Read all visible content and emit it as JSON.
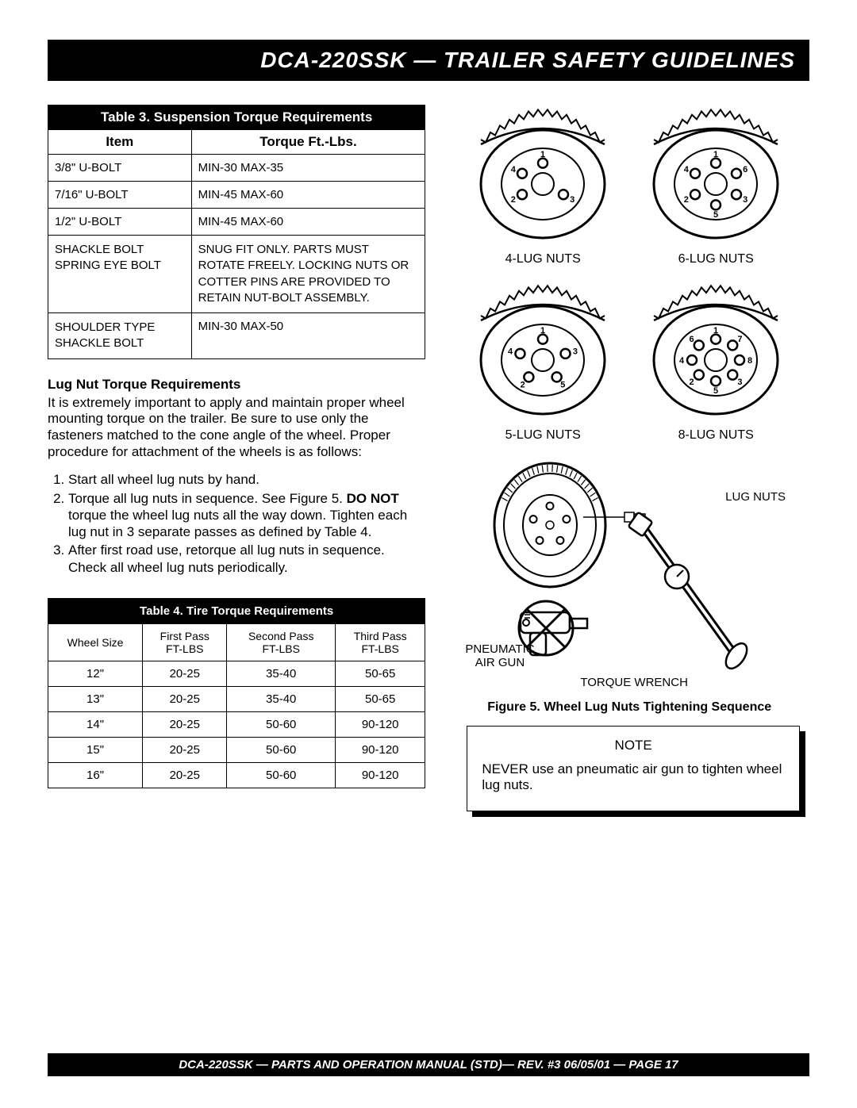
{
  "header": "DCA-220SSK — TRAILER SAFETY GUIDELINES",
  "footer": "DCA-220SSK — PARTS AND OPERATION  MANUAL (STD)— REV. #3  06/05/01 — PAGE 17",
  "table3": {
    "title": "Table 3.  Suspension Torque Requirements",
    "headers": [
      "Item",
      "Torque Ft.-Lbs."
    ],
    "rows": [
      {
        "item": "3/8\" U-BOLT",
        "val": "MIN-30 MAX-35",
        "small": false
      },
      {
        "item": "7/16\" U-BOLT",
        "val": "MIN-45 MAX-60",
        "small": false
      },
      {
        "item": "1/2\" U-BOLT",
        "val": "MIN-45 MAX-60",
        "small": false
      },
      {
        "item": "SHACKLE BOLT\nSPRING EYE BOLT",
        "val": "SNUG FIT ONLY.   PARTS MUST ROTATE FREELY. LOCKING NUTS OR COTTER PINS ARE PROVIDED TO RETAIN NUT-BOLT ASSEMBLY.",
        "small": true
      },
      {
        "item": "SHOULDER TYPE\nSHACKLE BOLT",
        "val": "MIN-30 MAX-50",
        "smallItem": true
      }
    ]
  },
  "lugSection": {
    "heading": "Lug Nut Torque Requirements",
    "para": "It is extremely important to apply and maintain proper wheel mounting torque on the trailer.  Be sure to use only the fasteners matched to the cone angle of the wheel.  Proper procedure for attachment of the wheels is as follows:",
    "step1": "Start all wheel lug nuts by hand.",
    "step2a": "Torque all lug nuts in sequence.  See Figure 5.  ",
    "step2b": "DO NOT",
    "step2c": " torque the wheel lug nuts all the way down.  Tighten each lug nut in 3 separate passes as defined by Table 4.",
    "step3": " After first road use, retorque all lug nuts in sequence. Check all wheel lug nuts periodically."
  },
  "table4": {
    "title": "Table 4.  Tire Torque Requirements",
    "headers": [
      "Wheel Size",
      "First Pass\nFT-LBS",
      "Second Pass\nFT-LBS",
      "Third Pass\nFT-LBS"
    ],
    "rows": [
      [
        "12\"",
        "20-25",
        "35-40",
        "50-65"
      ],
      [
        "13\"",
        "20-25",
        "35-40",
        "50-65"
      ],
      [
        "14\"",
        "20-25",
        "50-60",
        "90-120"
      ],
      [
        "15\"",
        "20-25",
        "50-60",
        "90-120"
      ],
      [
        "16\"",
        "20-25",
        "50-60",
        "90-120"
      ]
    ]
  },
  "lugPatterns": {
    "p4": {
      "label": "4-LUG NUTS",
      "count": 4,
      "angles": [
        90,
        330,
        210,
        150
      ],
      "nums": [
        "1",
        "3",
        "2",
        "4"
      ]
    },
    "p6": {
      "label": "6-LUG NUTS",
      "count": 6,
      "angles": [
        90,
        330,
        270,
        210,
        150,
        30
      ],
      "nums": [
        "1",
        "3",
        "5",
        "2",
        "4",
        "6"
      ]
    },
    "p5": {
      "label": "5-LUG NUTS",
      "count": 5,
      "angles": [
        90,
        18,
        306,
        234,
        162
      ],
      "nums": [
        "1",
        "3",
        "5",
        "2",
        "4"
      ]
    },
    "p8": {
      "label": "8-LUG NUTS",
      "count": 8,
      "angles": [
        90,
        315,
        270,
        225,
        180,
        135,
        45,
        0
      ],
      "nums": [
        "1",
        "3",
        "5",
        "2",
        "4",
        "6",
        "7",
        "8"
      ]
    }
  },
  "diagramLabels": {
    "lugnuts": "LUG NUTS",
    "airgun": "PNEUMATIC\nAIR GUN",
    "wrench": "TORQUE WRENCH"
  },
  "figCaption": "Figure 5. Wheel Lug Nuts Tightening Sequence",
  "note": {
    "title": "NOTE",
    "body": "NEVER use an pneumatic air gun to tighten wheel lug nuts."
  },
  "colors": {
    "black": "#000000",
    "white": "#ffffff"
  }
}
